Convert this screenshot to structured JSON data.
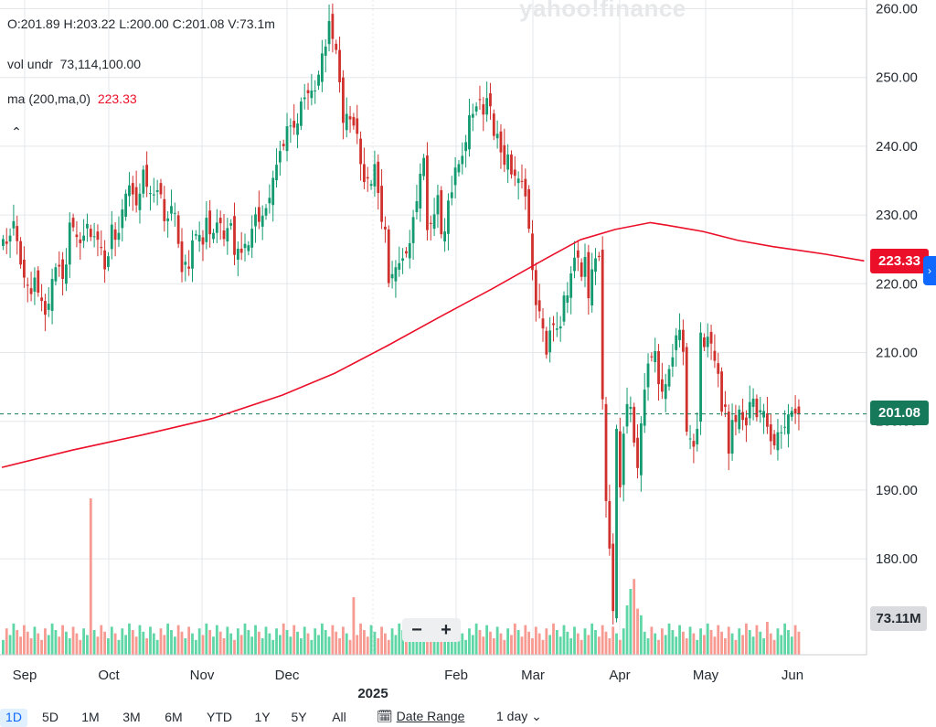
{
  "legend": {
    "ohlc": "O:201.89  H:203.22  L:200.00  C:201.08  V:73.1m",
    "vol_label": "vol undr",
    "vol_value": "73,114,100.00",
    "ma_label": "ma (200,ma,0)",
    "ma_value": "223.33"
  },
  "watermark": "yahoo!finance",
  "tags": {
    "ma": "223.33",
    "close": "201.08",
    "volume": "73.11M"
  },
  "zoom": {
    "minus": "−",
    "plus": "+"
  },
  "toolbar": {
    "ranges": [
      "1D",
      "5D",
      "1M",
      "3M",
      "6M",
      "YTD",
      "1Y",
      "5Y",
      "All"
    ],
    "active_range": "1D",
    "date_range_label": "Date Range",
    "interval_label": "1 day",
    "calendar_icon": "calendar-icon",
    "chevron_icon": "chevron-down-icon"
  },
  "colors": {
    "up": "#139a70",
    "down": "#d0312d",
    "ma": "#eb0f29",
    "vol_up": "#5fd6a5",
    "vol_down": "#f79a92",
    "grid": "#e5e7ea"
  },
  "chart_data": {
    "type": "candlestick",
    "ylim": [
      174,
      261
    ],
    "y_ticks": [
      "260.00",
      "250.00",
      "240.00",
      "230.00",
      "220.00",
      "210.00",
      "200.00",
      "190.00",
      "180.00"
    ],
    "x_labels": [
      "Sep",
      "Oct",
      "Nov",
      "Dec",
      "2025",
      "Feb",
      "Mar",
      "Apr",
      "May",
      "Jun"
    ],
    "last_close": 201.08,
    "ma_last": 223.33,
    "close_series": [
      226.5,
      225.8,
      227.0,
      229.1,
      226.2,
      222.8,
      220.9,
      219.7,
      218.5,
      220.9,
      218.7,
      217.5,
      215.5,
      217.1,
      220.7,
      222.4,
      222.5,
      220.7,
      222.8,
      228.9,
      228.2,
      226.8,
      225.9,
      227.0,
      228.7,
      226.8,
      226.9,
      226.4,
      225.2,
      222.1,
      224.0,
      228.6,
      226.4,
      227.4,
      230.8,
      233.1,
      234.3,
      233.0,
      231.4,
      233.1,
      236.6,
      234.1,
      233.2,
      233.0,
      233.6,
      233.0,
      229.1,
      229.5,
      231.3,
      230.3,
      225.8,
      221.7,
      223.2,
      222.2,
      226.3,
      227.2,
      227.1,
      225.7,
      229.6,
      227.2,
      227.4,
      228.9,
      228.8,
      226.5,
      228.1,
      228.8,
      224.2,
      225.1,
      224.5,
      225.8,
      225.6,
      228.0,
      230.1,
      229.0,
      229.9,
      231.0,
      232.5,
      235.4,
      237.3,
      239.3,
      240.0,
      242.9,
      243.0,
      242.7,
      243.3,
      246.5,
      247.1,
      247.7,
      248.1,
      248.1,
      250.4,
      253.5,
      254.5,
      258.2,
      255.6,
      254.0,
      249.3,
      243.4,
      244.7,
      243.9,
      243.0,
      241.8,
      237.4,
      234.8,
      235.3,
      234.5,
      237.4,
      233.2,
      229.0,
      227.9,
      220.1,
      221.4,
      222.4,
      223.0,
      223.7,
      224.4,
      225.9,
      229.7,
      232.0,
      236.0,
      238.3,
      227.8,
      228.7,
      230.1,
      232.9,
      227.2,
      227.6,
      232.1,
      233.3,
      236.9,
      237.4,
      238.6,
      240.6,
      244.5,
      244.7,
      245.8,
      246.8,
      244.6,
      247.0,
      245.8,
      241.5,
      241.8,
      239.1,
      237.3,
      238.8,
      235.9,
      235.7,
      235.3,
      234.9,
      232.7,
      228.0,
      222.0,
      216.9,
      216.0,
      213.5,
      209.7,
      213.2,
      214.0,
      213.5,
      213.8,
      218.3,
      218.3,
      221.5,
      223.8,
      223.8,
      221.0,
      223.9,
      217.9,
      222.1,
      223.7,
      223.9,
      203.2,
      188.4,
      181.5,
      172.4,
      198.9,
      190.4,
      198.2,
      202.5,
      202.1,
      196.9,
      193.2,
      199.7,
      204.6,
      208.4,
      209.3,
      210.2,
      205.4,
      204.3,
      205.4,
      207.6,
      209.3,
      212.5,
      213.3,
      210.1,
      198.5,
      197.5,
      196.3,
      198.9,
      212.9,
      210.8,
      212.3,
      211.3,
      208.8,
      206.9,
      201.4,
      202.1,
      195.3,
      200.2,
      199.9,
      201.7,
      200.2,
      199.4,
      202.8,
      203.3,
      200.6,
      201.6,
      201.5,
      199.2,
      197.1,
      196.5,
      198.4,
      198.4,
      199.2,
      201.0,
      201.5,
      201.1,
      201.08
    ],
    "ma_series": [
      {
        "x": 0,
        "y": 193.3
      },
      {
        "x": 20,
        "y": 195.8
      },
      {
        "x": 40,
        "y": 198.0
      },
      {
        "x": 60,
        "y": 200.4
      },
      {
        "x": 80,
        "y": 203.8
      },
      {
        "x": 95,
        "y": 207.0
      },
      {
        "x": 110,
        "y": 211.0
      },
      {
        "x": 125,
        "y": 215.2
      },
      {
        "x": 140,
        "y": 219.3
      },
      {
        "x": 155,
        "y": 223.6
      },
      {
        "x": 165,
        "y": 226.4
      },
      {
        "x": 175,
        "y": 227.9
      },
      {
        "x": 185,
        "y": 228.9
      },
      {
        "x": 190,
        "y": 228.5
      },
      {
        "x": 200,
        "y": 227.6
      },
      {
        "x": 210,
        "y": 226.3
      },
      {
        "x": 220,
        "y": 225.4
      },
      {
        "x": 235,
        "y": 224.3
      },
      {
        "x": 246,
        "y": 223.33
      }
    ],
    "volume_axis_max": 100,
    "volume_spikes": [
      {
        "i": 25,
        "value": 95
      },
      {
        "i": 100,
        "value": 35
      },
      {
        "i": 121,
        "value": 22
      },
      {
        "i": 128,
        "value": 20
      },
      {
        "i": 178,
        "value": 30
      },
      {
        "i": 179,
        "value": 40
      },
      {
        "i": 180,
        "value": 46
      },
      {
        "i": 181,
        "value": 28
      },
      {
        "i": 182,
        "value": 24
      },
      {
        "i": 218,
        "value": 20
      },
      {
        "i": 246,
        "value": 18
      }
    ]
  }
}
